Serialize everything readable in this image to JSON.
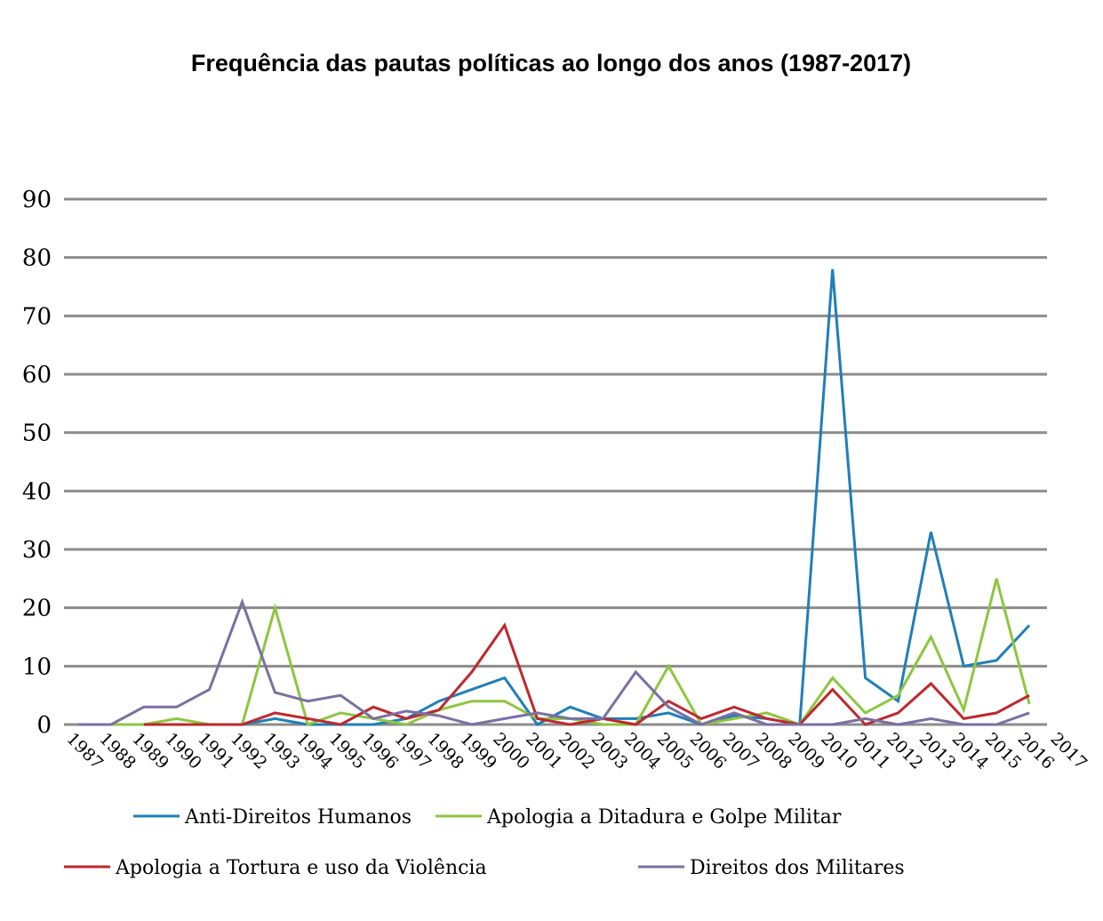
{
  "chart_data": {
    "type": "line",
    "title": "Frequência das pautas políticas ao longo dos anos (1987-2017)",
    "xlabel": "",
    "ylabel": "",
    "ylim": [
      0,
      90
    ],
    "yticks": [
      "0",
      "10",
      "20",
      "30",
      "40",
      "50",
      "60",
      "70",
      "80",
      "90"
    ],
    "x": [
      1987,
      1988,
      1989,
      1990,
      1991,
      1992,
      1993,
      1994,
      1995,
      1996,
      1997,
      1998,
      1999,
      2000,
      2001,
      2002,
      2003,
      2004,
      2005,
      2006,
      2007,
      2008,
      2009,
      2010,
      2011,
      2012,
      2013,
      2014,
      2015,
      2016
    ],
    "xtick_labels": [
      "1987",
      "1988",
      "1989",
      "1990",
      "1991",
      "1992",
      "1993",
      "1994",
      "1995",
      "1996",
      "1997",
      "1998",
      "1999",
      "2000",
      "2001",
      "2002",
      "2003",
      "2004",
      "2005",
      "2006",
      "2007",
      "2008",
      "2009",
      "2010",
      "2011",
      "2012",
      "2013",
      "2014",
      "2015",
      "2016",
      "2017"
    ],
    "grid": true,
    "legend_position": "bottom",
    "series": [
      {
        "name": "Anti-Direitos Humanos",
        "color": "#1f7fb8",
        "values": [
          null,
          null,
          null,
          null,
          0,
          0,
          1,
          0,
          0,
          0,
          1,
          4,
          6,
          8,
          0,
          3,
          1,
          1,
          2,
          0,
          1.5,
          1,
          0,
          78,
          8,
          4,
          33,
          10,
          11,
          17
        ]
      },
      {
        "name": "Apologia a Ditadura e Golpe Militar",
        "color": "#8dc63f",
        "values": [
          null,
          0,
          0,
          1,
          0,
          0,
          20,
          0,
          2,
          1,
          0,
          2.5,
          4,
          4,
          1,
          1,
          0,
          0,
          10,
          0,
          1,
          2,
          0,
          8,
          2,
          5,
          15,
          2.5,
          25,
          3.5
        ]
      },
      {
        "name": "Apologia a Tortura e uso da Violência",
        "color": "#c0272d",
        "values": [
          null,
          null,
          0,
          0,
          0,
          0,
          2,
          1,
          0,
          3,
          1,
          2.5,
          9,
          17,
          1,
          0,
          1,
          0,
          4,
          1,
          3,
          1,
          0,
          6,
          0,
          2,
          7,
          1,
          2,
          5
        ]
      },
      {
        "name": "Direitos dos Militares",
        "color": "#7b6fa3",
        "values": [
          0,
          0,
          3,
          3,
          6,
          21,
          5.5,
          4,
          5,
          1,
          2.3,
          1.5,
          0,
          1,
          2,
          1,
          1,
          9,
          3,
          0,
          2,
          0,
          0,
          0,
          1,
          0,
          1,
          0,
          0,
          2
        ]
      }
    ]
  }
}
